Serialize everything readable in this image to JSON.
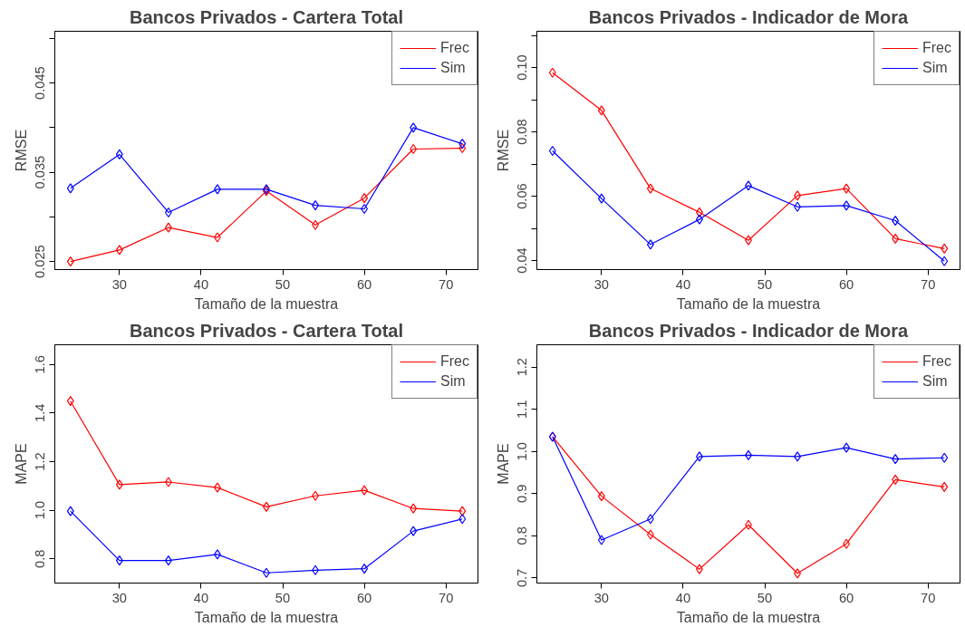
{
  "chart_data": [
    {
      "type": "line",
      "title": "Bancos Privados - Cartera Total",
      "xlabel": "Tamaño de la muestra",
      "ylabel": "RMSE",
      "x": [
        24,
        30,
        36,
        42,
        48,
        54,
        60,
        66,
        72
      ],
      "xlim": [
        22.08,
        73.92
      ],
      "xticks": [
        30,
        40,
        50,
        60,
        70
      ],
      "ylim": [
        0.0241,
        0.0508
      ],
      "yticks": [
        0.025,
        {
          "value": 0.03,
          "label": null
        },
        0.035,
        {
          "value": 0.04,
          "label": null
        },
        0.045,
        {
          "value": 0.05,
          "label": null
        }
      ],
      "marker": "diamond",
      "legend": "top right",
      "grid": false,
      "series": [
        {
          "name": "Frec",
          "color": "#ff0000",
          "values": [
            0.025,
            0.0263,
            0.0288,
            0.0277,
            0.0329,
            0.0291,
            0.0321,
            0.0376,
            0.0377
          ]
        },
        {
          "name": "Sim",
          "color": "#0000ff",
          "values": [
            0.0332,
            0.037,
            0.0305,
            0.0331,
            0.0331,
            0.0313,
            0.0309,
            0.04,
            0.0382
          ]
        }
      ]
    },
    {
      "type": "line",
      "title": "Bancos Privados - Indicador de Mora",
      "xlabel": "Tamaño de la muestra",
      "ylabel": "RMSE",
      "x": [
        24,
        30,
        36,
        42,
        48,
        54,
        60,
        66,
        72
      ],
      "xlim": [
        22.08,
        73.92
      ],
      "xticks": [
        30,
        40,
        50,
        60,
        70
      ],
      "ylim": [
        0.0372,
        0.1113
      ],
      "yticks": [
        0.04,
        {
          "value": 0.05,
          "label": null
        },
        0.06,
        {
          "value": 0.07,
          "label": null
        },
        0.08,
        {
          "value": 0.09,
          "label": null
        },
        "0.10",
        {
          "value": 0.11,
          "label": null
        }
      ],
      "marker": "diamond",
      "legend": "top right",
      "grid": false,
      "series": [
        {
          "name": "Frec",
          "color": "#ff0000",
          "values": [
            0.0984,
            0.0867,
            0.0624,
            0.055,
            0.0463,
            0.0602,
            0.0624,
            0.0468,
            0.0437
          ]
        },
        {
          "name": "Sim",
          "color": "#0000ff",
          "values": [
            0.0741,
            0.0593,
            0.045,
            0.0528,
            0.0633,
            0.0567,
            0.0571,
            0.0524,
            0.0398
          ]
        }
      ]
    },
    {
      "type": "line",
      "title": "Bancos Privados - Cartera Total",
      "xlabel": "Tamaño de la muestra",
      "ylabel": "MAPE",
      "x": [
        24,
        30,
        36,
        42,
        48,
        54,
        60,
        66,
        72
      ],
      "xlim": [
        22.08,
        73.92
      ],
      "xticks": [
        30,
        40,
        50,
        60,
        70
      ],
      "ylim": [
        0.7,
        1.681
      ],
      "yticks": [
        0.8,
        "1.0",
        1.2,
        1.4,
        1.6
      ],
      "marker": "diamond",
      "legend": "top right",
      "grid": false,
      "series": [
        {
          "name": "Frec",
          "color": "#ff0000",
          "values": [
            1.449,
            1.105,
            1.116,
            1.093,
            1.014,
            1.059,
            1.082,
            1.007,
            0.996
          ]
        },
        {
          "name": "Sim",
          "color": "#0000ff",
          "values": [
            0.996,
            0.793,
            0.793,
            0.818,
            0.742,
            0.753,
            0.759,
            0.914,
            0.964
          ]
        }
      ]
    },
    {
      "type": "line",
      "title": "Bancos Privados - Indicador de Mora",
      "xlabel": "Tamaño de la muestra",
      "ylabel": "MAPE",
      "x": [
        24,
        30,
        36,
        42,
        48,
        54,
        60,
        66,
        72
      ],
      "xlim": [
        22.08,
        73.92
      ],
      "xticks": [
        30,
        40,
        50,
        60,
        70
      ],
      "ylim": [
        0.688,
        1.253
      ],
      "yticks": [
        0.7,
        0.8,
        0.9,
        "1.0",
        1.1,
        1.2
      ],
      "marker": "diamond",
      "legend": "top right",
      "grid": false,
      "series": [
        {
          "name": "Frec",
          "color": "#ff0000",
          "values": [
            1.035,
            0.894,
            0.803,
            0.721,
            0.826,
            0.711,
            0.781,
            0.933,
            0.916
          ]
        },
        {
          "name": "Sim",
          "color": "#0000ff",
          "values": [
            1.035,
            0.79,
            0.84,
            0.988,
            0.991,
            0.988,
            1.009,
            0.982,
            0.985
          ]
        }
      ]
    }
  ]
}
